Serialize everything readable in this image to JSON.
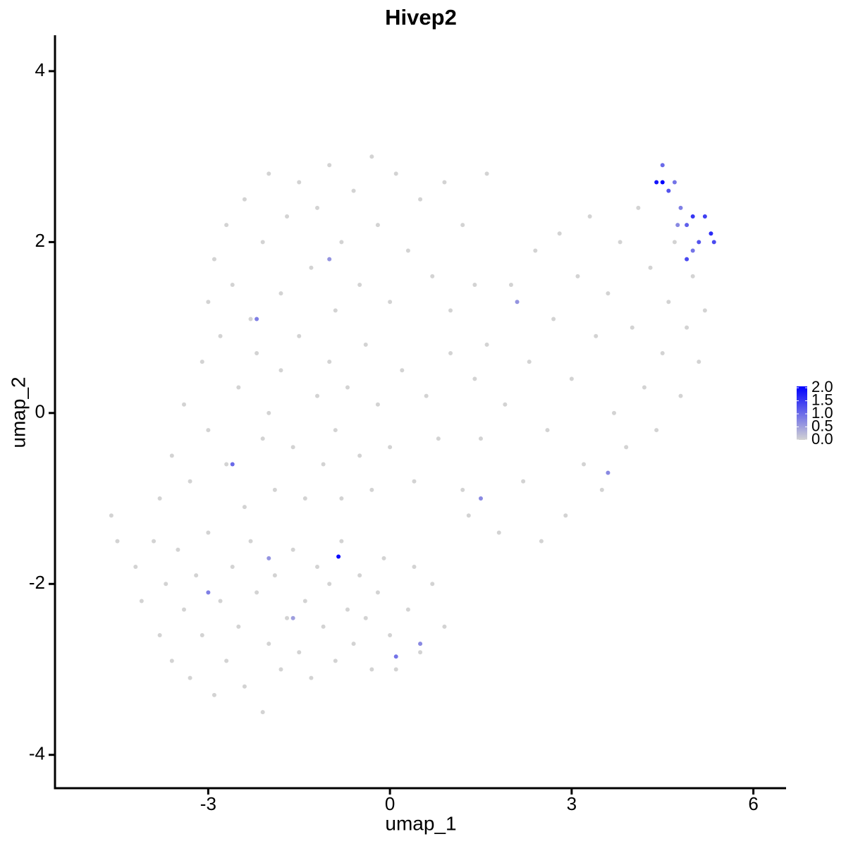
{
  "chart_data": {
    "type": "scatter",
    "title": "Hivep2",
    "xlabel": "umap_1",
    "ylabel": "umap_2",
    "xlim": [
      -5.53,
      6.54
    ],
    "ylim": [
      -4.39,
      4.42
    ],
    "xticks": [
      -3,
      0,
      3,
      6
    ],
    "yticks": [
      -4,
      -2,
      0,
      2,
      4
    ],
    "colorscale": [
      "#d3d3d3",
      "#0000ff"
    ],
    "clim": [
      0,
      2.0
    ],
    "colorbar_ticks": [
      {
        "value": 0,
        "label": "0.0"
      },
      {
        "value": 0.5,
        "label": "0.5"
      },
      {
        "value": 1.0,
        "label": "1.0"
      },
      {
        "value": 1.5,
        "label": "1.5"
      },
      {
        "value": 2.0,
        "label": "2.0"
      }
    ],
    "x": [
      -4.6,
      -4.5,
      -4.2,
      -4.1,
      -3.9,
      -3.8,
      -3.7,
      -3.6,
      -3.5,
      -3.4,
      -3.3,
      -3.2,
      -3.1,
      -3.0,
      -2.9,
      -2.8,
      -2.7,
      -2.6,
      -2.5,
      -2.4,
      -2.3,
      -2.2,
      -2.1,
      -2.0,
      -1.9,
      -1.8,
      -1.7,
      -1.6,
      -1.5,
      -1.4,
      -1.3,
      -1.2,
      -1.1,
      -1.0,
      -0.9,
      -0.8,
      -0.7,
      -0.6,
      -0.5,
      -0.4,
      -0.3,
      -0.2,
      -0.1,
      0.0,
      0.1,
      0.3,
      0.4,
      0.5,
      0.7,
      0.9,
      -3.8,
      -3.6,
      -3.4,
      -3.3,
      -3.1,
      -3.0,
      -2.8,
      -2.7,
      -2.5,
      -2.4,
      -2.2,
      -2.1,
      -2.0,
      -1.9,
      -1.8,
      -1.6,
      -1.5,
      -1.4,
      -1.2,
      -1.1,
      -1.0,
      -0.9,
      -0.8,
      -0.7,
      -0.5,
      -0.4,
      -0.3,
      -0.2,
      0.0,
      0.2,
      0.4,
      0.6,
      0.8,
      1.0,
      1.2,
      1.4,
      -3.0,
      -2.9,
      -2.7,
      -2.6,
      -2.4,
      -2.3,
      -2.1,
      -2.0,
      -1.8,
      -1.7,
      -1.5,
      -1.3,
      -1.2,
      -1.0,
      -0.9,
      -0.8,
      -0.6,
      -0.5,
      -0.3,
      -0.2,
      0.0,
      0.1,
      0.3,
      0.5,
      0.7,
      0.9,
      1.0,
      1.2,
      1.4,
      1.6,
      1.3,
      1.5,
      1.6,
      1.8,
      1.9,
      2.0,
      2.2,
      2.3,
      2.4,
      2.5,
      2.6,
      2.7,
      2.8,
      2.9,
      3.0,
      3.1,
      3.2,
      3.3,
      3.4,
      3.5,
      3.6,
      3.7,
      3.8,
      3.9,
      4.0,
      4.1,
      4.2,
      4.3,
      4.4,
      4.5,
      4.6,
      4.7,
      4.8,
      4.9,
      5.0,
      5.1,
      5.2,
      4.4,
      4.5,
      4.6,
      4.7,
      4.8,
      4.9,
      5.0,
      5.1,
      5.2,
      5.3,
      4.9,
      5.0,
      4.5,
      5.35,
      4.75,
      -0.85,
      -2.6,
      -2.2,
      -1.0,
      0.1,
      1.5,
      -3.0,
      0.5,
      2.1,
      3.6,
      -2.0,
      -1.6
    ],
    "y": [
      -1.2,
      -1.5,
      -1.8,
      -2.2,
      -1.5,
      -2.6,
      -2.0,
      -2.9,
      -1.6,
      -2.3,
      -3.1,
      -1.9,
      -2.6,
      -1.4,
      -3.3,
      -2.2,
      -2.9,
      -1.8,
      -2.5,
      -3.2,
      -1.5,
      -2.1,
      -3.5,
      -2.7,
      -1.9,
      -3.0,
      -2.4,
      -1.6,
      -2.8,
      -2.2,
      -3.1,
      -1.8,
      -2.5,
      -2.0,
      -2.9,
      -1.5,
      -2.3,
      -2.7,
      -1.9,
      -2.4,
      -3.0,
      -2.1,
      -1.7,
      -2.6,
      -3.0,
      -2.3,
      -1.8,
      -2.8,
      -2.0,
      -2.5,
      -1.0,
      -0.5,
      0.1,
      -0.8,
      0.6,
      -0.2,
      0.9,
      -0.6,
      0.3,
      -1.1,
      0.7,
      -0.3,
      0.0,
      -0.9,
      0.5,
      -0.4,
      0.9,
      -1.0,
      0.2,
      -0.6,
      0.6,
      -0.2,
      -1.0,
      0.3,
      -0.5,
      0.8,
      -0.9,
      0.1,
      -0.4,
      0.5,
      -0.8,
      0.2,
      -0.3,
      0.7,
      -0.9,
      0.4,
      1.3,
      1.8,
      2.2,
      1.5,
      2.5,
      1.1,
      2.0,
      2.8,
      1.4,
      2.3,
      2.7,
      1.7,
      2.4,
      2.9,
      1.2,
      2.0,
      2.6,
      1.5,
      3.0,
      2.2,
      1.3,
      2.8,
      1.9,
      2.5,
      1.6,
      2.7,
      1.2,
      2.2,
      1.5,
      2.8,
      -1.2,
      -0.3,
      0.8,
      -1.4,
      0.1,
      1.5,
      -0.8,
      0.6,
      1.9,
      -1.5,
      -0.2,
      1.1,
      2.1,
      -1.2,
      0.4,
      1.6,
      -0.6,
      2.3,
      0.9,
      -0.9,
      1.4,
      0.0,
      2.0,
      -0.4,
      1.0,
      2.4,
      0.3,
      1.7,
      -0.2,
      0.7,
      1.3,
      2.0,
      0.2,
      1.0,
      1.6,
      0.6,
      1.2,
      2.7,
      2.9,
      2.6,
      2.7,
      2.4,
      2.2,
      2.3,
      2.0,
      2.3,
      2.1,
      1.8,
      1.9,
      2.7,
      2.0,
      2.2,
      -1.68,
      -0.6,
      1.1,
      1.8,
      -2.85,
      -1.0,
      -2.1,
      -2.7,
      1.3,
      -0.7,
      -1.7,
      -2.4
    ],
    "expression": [
      0,
      0,
      0,
      0,
      0,
      0,
      0,
      0,
      0,
      0,
      0,
      0,
      0,
      0,
      0,
      0,
      0,
      0,
      0,
      0,
      0,
      0,
      0,
      0,
      0,
      0,
      0,
      0,
      0,
      0,
      0,
      0,
      0,
      0,
      0,
      0,
      0,
      0,
      0,
      0,
      0,
      0,
      0,
      0,
      0,
      0,
      0,
      0,
      0,
      0,
      0,
      0,
      0,
      0,
      0,
      0,
      0,
      0,
      0,
      0,
      0,
      0,
      0,
      0,
      0,
      0,
      0,
      0,
      0,
      0,
      0,
      0,
      0,
      0,
      0,
      0,
      0,
      0,
      0,
      0,
      0,
      0,
      0,
      0,
      0,
      0,
      0,
      0,
      0,
      0,
      0,
      0,
      0,
      0,
      0,
      0,
      0,
      0,
      0,
      0,
      0,
      0,
      0,
      0,
      0,
      0,
      0,
      0,
      0,
      0,
      0,
      0,
      0,
      0,
      0,
      0,
      0,
      0,
      0,
      0,
      0,
      0,
      0,
      0,
      0,
      0,
      0,
      0,
      0,
      0,
      0,
      0,
      0,
      0,
      0,
      0,
      0,
      0,
      0,
      0,
      0,
      0,
      0,
      0,
      0,
      0,
      0,
      0,
      0,
      0,
      0,
      0,
      0,
      1.8,
      1.0,
      1.2,
      0.9,
      0.8,
      1.1,
      1.5,
      1.2,
      1.4,
      1.6,
      1.3,
      0.9,
      2.0,
      1.3,
      0.7,
      1.9,
      1.0,
      0.8,
      0.6,
      0.9,
      0.7,
      0.8,
      0.7,
      0.6,
      0.7,
      0.6,
      0.5
    ]
  }
}
